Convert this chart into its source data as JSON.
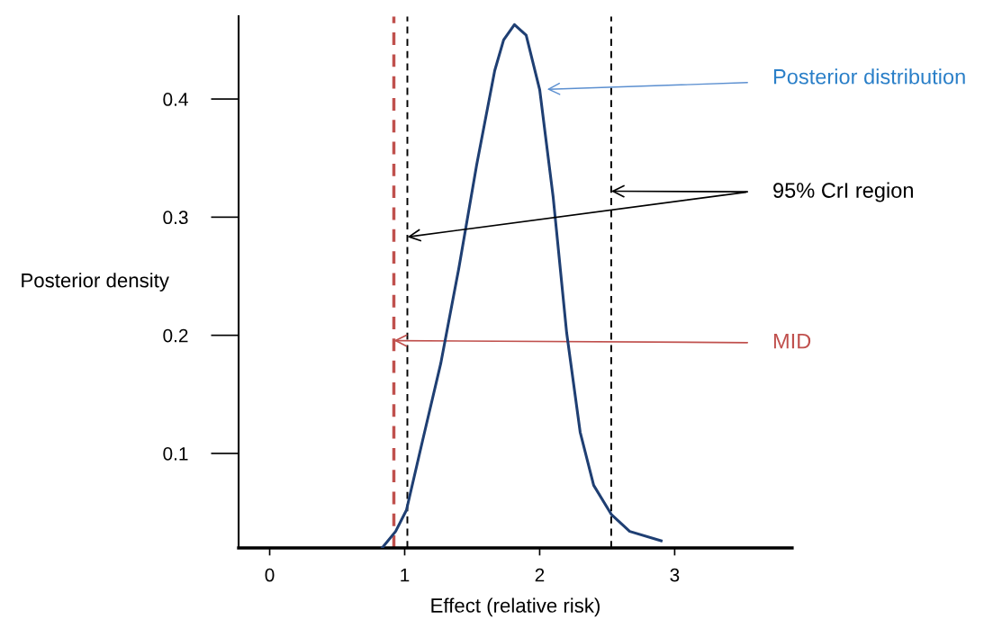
{
  "chart_data": {
    "type": "line",
    "xlabel": "Effect (relative risk)",
    "ylabel": "Posterior density",
    "x": [
      0.833,
      0.933,
      1.013,
      1.133,
      1.267,
      1.4,
      1.533,
      1.667,
      1.733,
      1.813,
      1.9,
      2.0,
      2.1,
      2.2,
      2.3,
      2.4,
      2.533,
      2.667,
      2.9
    ],
    "series": [
      {
        "name": "Posterior distribution",
        "color": "#1f3f73",
        "values": [
          0.02,
          0.034,
          0.052,
          0.111,
          0.176,
          0.256,
          0.344,
          0.424,
          0.45,
          0.463,
          0.454,
          0.408,
          0.317,
          0.202,
          0.118,
          0.073,
          0.048,
          0.034,
          0.026
        ]
      }
    ],
    "xlim": [
      -0.23,
      3.87
    ],
    "ylim": [
      0.02,
      0.47
    ],
    "xticks": [
      0,
      1,
      2,
      3
    ],
    "yticks": [
      0.1,
      0.2,
      0.3,
      0.4
    ],
    "ref_lines": [
      {
        "axis": "x",
        "value": 0.92,
        "label": "MID",
        "color": "#c0504d",
        "line_style": "dashed"
      },
      {
        "axis": "x",
        "value": 1.02,
        "color": "#000000",
        "line_style": "dashed"
      },
      {
        "axis": "x",
        "value": 2.53,
        "color": "#000000",
        "line_style": "dashed"
      }
    ],
    "annotations": [
      {
        "text": "95% CrI region",
        "x": 2.53,
        "y": 0.322
      }
    ],
    "grid": false,
    "legend": false,
    "marker": "none",
    "line_style": "solid"
  }
}
